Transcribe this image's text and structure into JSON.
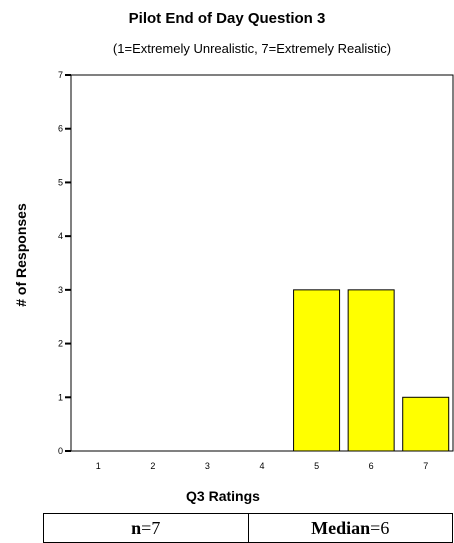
{
  "chart_data": {
    "type": "bar",
    "title": "Pilot End of  Day Question 3",
    "subtitle": "(1=Extremely Unrealistic, 7=Extremely Realistic)",
    "xlabel": "Q3 Ratings",
    "ylabel": "# of Responses",
    "categories": [
      "1",
      "2",
      "3",
      "4",
      "5",
      "6",
      "7"
    ],
    "values": [
      0,
      0,
      0,
      0,
      3,
      3,
      1
    ],
    "yticks": [
      "0",
      "1",
      "2",
      "3",
      "4",
      "5",
      "6",
      "7"
    ],
    "ylim": [
      0,
      7
    ],
    "grid": false,
    "bar_color": "#ffff00",
    "frame_color": "#000000"
  },
  "stats": {
    "n_label": "n",
    "n_value": "=7",
    "median_label": "Median",
    "median_value": "=6"
  }
}
